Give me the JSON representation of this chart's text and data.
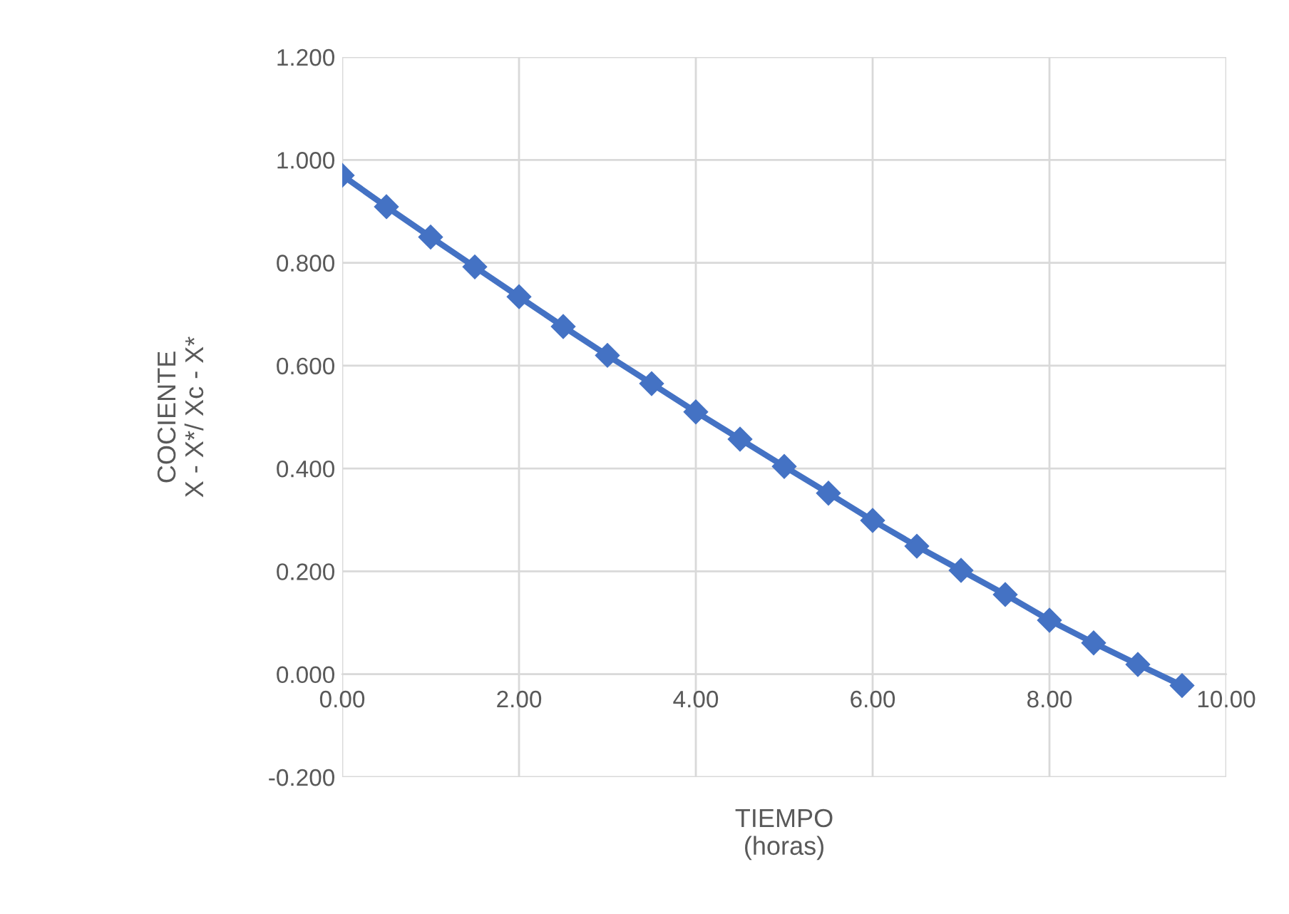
{
  "chart_data": {
    "type": "line",
    "xlabel": "TIEMPO\n(horas)",
    "ylabel": "COCIENTE\nX - X*/ Xc - X*",
    "x": [
      0,
      0.5,
      1,
      1.5,
      2,
      2.5,
      3,
      3.5,
      4,
      4.5,
      5,
      5.5,
      6,
      6.5,
      7,
      7.5,
      8,
      8.5,
      9,
      9.5
    ],
    "series": [
      {
        "color": "#4472c4",
        "values": [
          0.97,
          0.909,
          0.85,
          0.792,
          0.734,
          0.676,
          0.62,
          0.565,
          0.51,
          0.457,
          0.404,
          0.352,
          0.299,
          0.249,
          0.202,
          0.155,
          0.105,
          0.061,
          0.019,
          -0.022
        ]
      }
    ],
    "xlim": [
      0,
      10
    ],
    "xticks": [
      {
        "value": 0,
        "label": "0.00"
      },
      {
        "value": 2,
        "label": "2.00"
      },
      {
        "value": 4,
        "label": "4.00"
      },
      {
        "value": 6,
        "label": "6.00"
      },
      {
        "value": 8,
        "label": "8.00"
      },
      {
        "value": 10,
        "label": "10.00"
      }
    ],
    "ylim": [
      -0.2,
      1.2
    ],
    "yticks": [
      {
        "value": -0.2,
        "label": "-0.200"
      },
      {
        "value": 0,
        "label": "0.000"
      },
      {
        "value": 0.2,
        "label": "0.200"
      },
      {
        "value": 0.4,
        "label": "0.400"
      },
      {
        "value": 0.6,
        "label": "0.600"
      },
      {
        "value": 0.8,
        "label": "0.800"
      },
      {
        "value": 1.0,
        "label": "1.000"
      },
      {
        "value": 1.2,
        "label": "1.200"
      }
    ],
    "grid": true,
    "marker": "diamond",
    "line_style": "solid"
  }
}
